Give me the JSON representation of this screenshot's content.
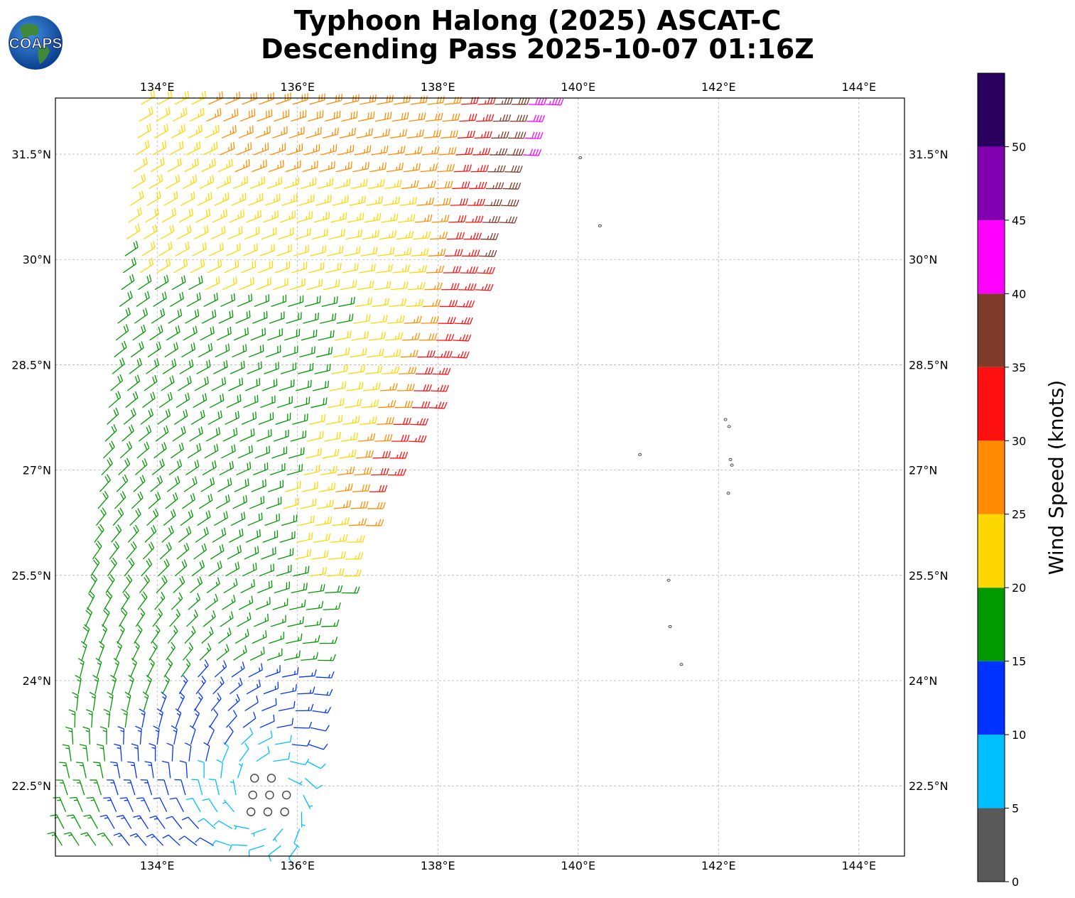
{
  "title_line1": "Typhoon Halong (2025) ASCAT-C",
  "title_line2": "Descending Pass 2025-10-07 01:16Z",
  "logo_text": "COAPS",
  "map": {
    "lon_range": [
      132.55,
      144.65
    ],
    "lat_range": [
      21.5,
      32.3
    ],
    "lon_ticks": [
      {
        "value": 134,
        "label": "134°E"
      },
      {
        "value": 136,
        "label": "136°E"
      },
      {
        "value": 138,
        "label": "138°E"
      },
      {
        "value": 140,
        "label": "140°E"
      },
      {
        "value": 142,
        "label": "142°E"
      },
      {
        "value": 144,
        "label": "144°E"
      }
    ],
    "lat_ticks": [
      {
        "value": 22.5,
        "label": "22.5°N"
      },
      {
        "value": 24,
        "label": "24°N"
      },
      {
        "value": 25.5,
        "label": "25.5°N"
      },
      {
        "value": 27,
        "label": "27°N"
      },
      {
        "value": 28.5,
        "label": "28.5°N"
      },
      {
        "value": 30,
        "label": "30°N"
      },
      {
        "value": 31.5,
        "label": "31.5°N"
      }
    ],
    "gridlines": true,
    "islands": [
      {
        "lon": 140.03,
        "lat": 31.45
      },
      {
        "lon": 140.31,
        "lat": 30.48
      },
      {
        "lon": 140.88,
        "lat": 27.22
      },
      {
        "lon": 142.1,
        "lat": 27.72
      },
      {
        "lon": 142.15,
        "lat": 27.62
      },
      {
        "lon": 142.17,
        "lat": 27.15
      },
      {
        "lon": 142.19,
        "lat": 27.07
      },
      {
        "lon": 142.14,
        "lat": 26.67
      },
      {
        "lon": 141.29,
        "lat": 25.43
      },
      {
        "lon": 141.31,
        "lat": 24.77
      },
      {
        "lon": 141.47,
        "lat": 24.23
      }
    ]
  },
  "colorbar": {
    "label": "Wind Speed (knots)",
    "bins": [
      {
        "min": 0,
        "max": 5,
        "color": "#595959"
      },
      {
        "min": 5,
        "max": 10,
        "color": "#00bfff"
      },
      {
        "min": 10,
        "max": 15,
        "color": "#0033ff"
      },
      {
        "min": 15,
        "max": 20,
        "color": "#009900"
      },
      {
        "min": 20,
        "max": 25,
        "color": "#ffd700"
      },
      {
        "min": 25,
        "max": 30,
        "color": "#ff8c00"
      },
      {
        "min": 30,
        "max": 35,
        "color": "#ff1010"
      },
      {
        "min": 35,
        "max": 40,
        "color": "#7f3b2a"
      },
      {
        "min": 40,
        "max": 45,
        "color": "#ff00ff"
      },
      {
        "min": 45,
        "max": 50,
        "color": "#8000b0"
      },
      {
        "min": 50,
        "max": 55,
        "color": "#2a005e"
      }
    ],
    "ticks": [
      "0",
      "5",
      "10",
      "15",
      "20",
      "25",
      "30",
      "35",
      "40",
      "45",
      "50"
    ]
  },
  "wind_field": {
    "description_source": "ASCAT-C swath",
    "swath_east_edge": [
      {
        "lat": 21.5,
        "lon": 136.0
      },
      {
        "lat": 23.9,
        "lon": 136.25
      },
      {
        "lat": 25.5,
        "lon": 136.75
      },
      {
        "lat": 26.5,
        "lon": 137.1
      },
      {
        "lat": 28.0,
        "lon": 137.95
      },
      {
        "lat": 29.5,
        "lon": 138.55
      },
      {
        "lat": 30.8,
        "lon": 139.0
      },
      {
        "lat": 32.3,
        "lon": 139.6
      }
    ],
    "swath_west_edge": [
      {
        "lat": 21.5,
        "lon": 132.55
      },
      {
        "lat": 32.3,
        "lon": 133.7
      }
    ],
    "typhoon_center": {
      "lat": 22.3,
      "lon": 135.55
    }
  }
}
